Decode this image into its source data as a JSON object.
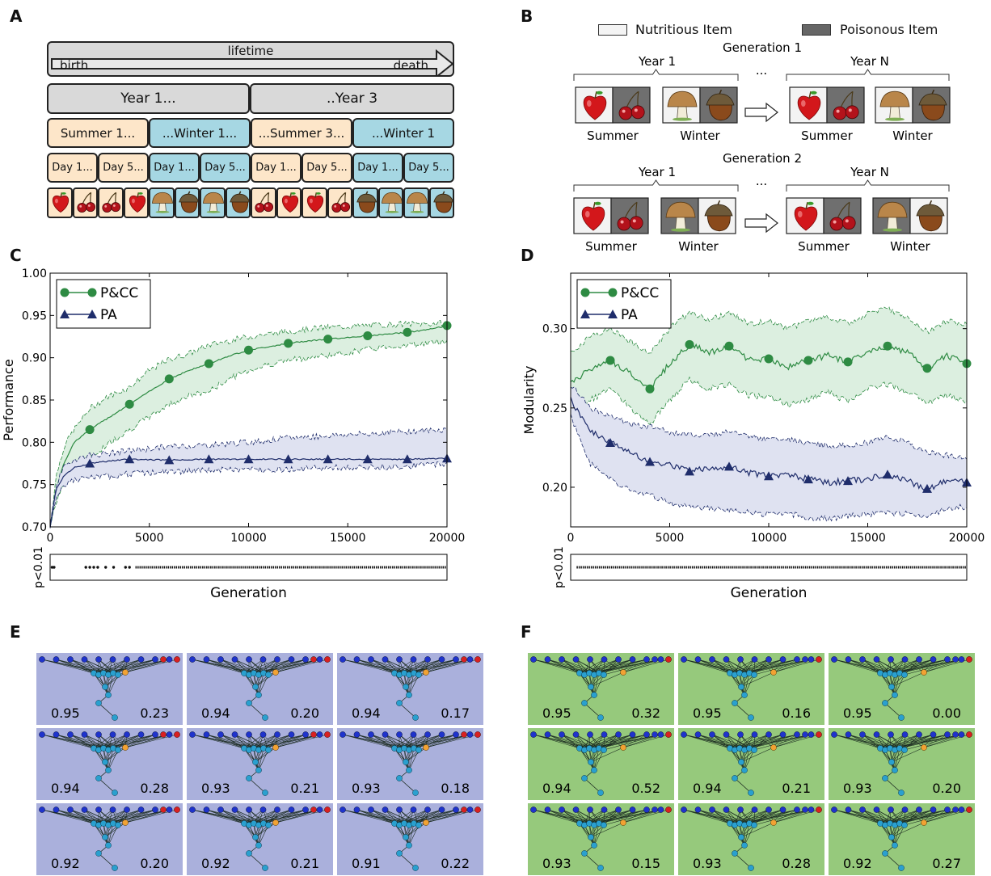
{
  "panels": {
    "A": "A",
    "B": "B",
    "C": "C",
    "D": "D",
    "E": "E",
    "F": "F"
  },
  "panelA": {
    "lifetime": "lifetime",
    "birth": "birth",
    "death": "death",
    "years": [
      "Year 1...",
      "..Year 3"
    ],
    "seasons": [
      "Summer 1...",
      "...Winter 1...",
      "...Summer 3...",
      "...Winter 1"
    ],
    "days": [
      "Day 1...",
      "Day 5...",
      "Day 1...",
      "Day 5...",
      "Day 1...",
      "Day 5...",
      "Day 1...",
      "Day 5..."
    ],
    "items": [
      "apple",
      "cherry",
      "cherry",
      "apple",
      "mushroom",
      "acorn",
      "mushroom",
      "acorn",
      "cherry",
      "apple",
      "apple",
      "cherry",
      "acorn",
      "mushroom",
      "mushroom",
      "acorn"
    ]
  },
  "panelB": {
    "legend": {
      "nutritious": "Nutritious Item",
      "poisonous": "Poisonous Item"
    },
    "generations": [
      {
        "title": "Generation 1",
        "year_start": "Year 1",
        "year_end": "Year N",
        "ellipsis": "...",
        "summer": "Summer",
        "winter": "Winter"
      },
      {
        "title": "Generation 2",
        "year_start": "Year 1",
        "year_end": "Year N",
        "ellipsis": "...",
        "summer": "Summer",
        "winter": "Winter"
      }
    ]
  },
  "chart_data": [
    {
      "type": "line",
      "panel": "C",
      "ylabel": "Performance",
      "xlabel": "Generation",
      "xlim": [
        0,
        20000
      ],
      "ylim": [
        0.7,
        1.0
      ],
      "xticks": [
        "0",
        "5000",
        "10000",
        "15000",
        "20000"
      ],
      "yticks": [
        "0.70",
        "0.75",
        "0.80",
        "0.85",
        "0.90",
        "0.95",
        "1.00"
      ],
      "legend_position": "top-left",
      "series": [
        {
          "name": "P&CC",
          "color": "#2e8b43",
          "marker": "circle",
          "x": [
            0,
            300,
            700,
            1200,
            2000,
            3000,
            4000,
            5000,
            6000,
            7000,
            8000,
            9000,
            10000,
            11000,
            12000,
            13000,
            14000,
            15000,
            16000,
            17000,
            18000,
            19000,
            20000
          ],
          "y": [
            0.7,
            0.745,
            0.775,
            0.8,
            0.815,
            0.83,
            0.845,
            0.86,
            0.875,
            0.885,
            0.893,
            0.902,
            0.909,
            0.913,
            0.917,
            0.92,
            0.922,
            0.924,
            0.926,
            0.928,
            0.93,
            0.933,
            0.938
          ],
          "lower": [
            0.7,
            0.73,
            0.75,
            0.77,
            0.78,
            0.8,
            0.815,
            0.83,
            0.845,
            0.855,
            0.86,
            0.875,
            0.885,
            0.892,
            0.897,
            0.9,
            0.903,
            0.906,
            0.91,
            0.913,
            0.915,
            0.917,
            0.92
          ],
          "upper": [
            0.7,
            0.76,
            0.795,
            0.815,
            0.84,
            0.855,
            0.865,
            0.885,
            0.898,
            0.905,
            0.915,
            0.92,
            0.925,
            0.928,
            0.931,
            0.934,
            0.936,
            0.937,
            0.938,
            0.939,
            0.94,
            0.94,
            0.941
          ]
        },
        {
          "name": "PA",
          "color": "#1f2d6b",
          "marker": "triangle",
          "x": [
            0,
            300,
            700,
            1200,
            2000,
            3000,
            4000,
            6000,
            8000,
            10000,
            12000,
            14000,
            16000,
            18000,
            20000
          ],
          "y": [
            0.7,
            0.745,
            0.76,
            0.77,
            0.775,
            0.778,
            0.78,
            0.779,
            0.78,
            0.78,
            0.78,
            0.78,
            0.78,
            0.78,
            0.781
          ],
          "lower": [
            0.7,
            0.735,
            0.75,
            0.755,
            0.758,
            0.76,
            0.763,
            0.765,
            0.767,
            0.768,
            0.768,
            0.77,
            0.77,
            0.772,
            0.775
          ],
          "upper": [
            0.7,
            0.75,
            0.77,
            0.78,
            0.785,
            0.787,
            0.79,
            0.795,
            0.797,
            0.8,
            0.805,
            0.808,
            0.81,
            0.813,
            0.815
          ]
        }
      ],
      "significance": {
        "ylabel": "p<0.01",
        "dense_from": 4300,
        "sparse_points": [
          100,
          200,
          1800,
          2000,
          2200,
          2400,
          2800,
          3200,
          3800,
          4000
        ]
      }
    },
    {
      "type": "line",
      "panel": "D",
      "ylabel": "Modularity",
      "xlabel": "Generation",
      "xlim": [
        0,
        20000
      ],
      "ylim": [
        0.175,
        0.335
      ],
      "xticks": [
        "0",
        "5000",
        "10000",
        "15000",
        "20000"
      ],
      "yticks": [
        "0.20",
        "0.25",
        "0.30"
      ],
      "ytick_values": [
        0.2,
        0.25,
        0.3
      ],
      "legend_position": "top-left",
      "series": [
        {
          "name": "P&CC",
          "color": "#2e8b43",
          "marker": "circle",
          "x": [
            0,
            1000,
            2000,
            3000,
            4000,
            5000,
            6000,
            7000,
            8000,
            9000,
            10000,
            11000,
            12000,
            13000,
            14000,
            15000,
            16000,
            17000,
            18000,
            19000,
            20000
          ],
          "y": [
            0.265,
            0.275,
            0.28,
            0.272,
            0.262,
            0.278,
            0.29,
            0.285,
            0.289,
            0.28,
            0.281,
            0.276,
            0.28,
            0.283,
            0.279,
            0.285,
            0.289,
            0.285,
            0.275,
            0.283,
            0.278
          ],
          "lower": [
            0.245,
            0.255,
            0.262,
            0.25,
            0.24,
            0.255,
            0.268,
            0.262,
            0.265,
            0.258,
            0.257,
            0.252,
            0.255,
            0.26,
            0.254,
            0.262,
            0.265,
            0.26,
            0.253,
            0.258,
            0.254
          ],
          "upper": [
            0.285,
            0.295,
            0.3,
            0.292,
            0.285,
            0.3,
            0.31,
            0.305,
            0.31,
            0.303,
            0.305,
            0.3,
            0.305,
            0.307,
            0.303,
            0.31,
            0.313,
            0.307,
            0.298,
            0.305,
            0.302
          ]
        },
        {
          "name": "PA",
          "color": "#1f2d6b",
          "marker": "triangle",
          "x": [
            0,
            1000,
            2000,
            3000,
            4000,
            5000,
            6000,
            7000,
            8000,
            9000,
            10000,
            11000,
            12000,
            13000,
            14000,
            15000,
            16000,
            17000,
            18000,
            19000,
            20000
          ],
          "y": [
            0.255,
            0.235,
            0.228,
            0.222,
            0.216,
            0.214,
            0.21,
            0.212,
            0.213,
            0.209,
            0.207,
            0.208,
            0.205,
            0.203,
            0.204,
            0.205,
            0.208,
            0.204,
            0.199,
            0.204,
            0.203
          ],
          "lower": [
            0.245,
            0.215,
            0.205,
            0.198,
            0.195,
            0.19,
            0.187,
            0.187,
            0.186,
            0.184,
            0.183,
            0.183,
            0.181,
            0.18,
            0.182,
            0.183,
            0.184,
            0.183,
            0.182,
            0.186,
            0.188
          ],
          "upper": [
            0.265,
            0.25,
            0.245,
            0.24,
            0.238,
            0.235,
            0.233,
            0.233,
            0.235,
            0.232,
            0.23,
            0.23,
            0.228,
            0.226,
            0.227,
            0.228,
            0.232,
            0.228,
            0.222,
            0.22,
            0.219
          ]
        }
      ],
      "significance": {
        "ylabel": "p<0.01",
        "dense_from": 300,
        "sparse_points": []
      }
    }
  ],
  "panelE": {
    "background": "#aab0dc",
    "cells": [
      {
        "performance": "0.95",
        "modularity": "0.23"
      },
      {
        "performance": "0.94",
        "modularity": "0.20"
      },
      {
        "performance": "0.94",
        "modularity": "0.17"
      },
      {
        "performance": "0.94",
        "modularity": "0.28"
      },
      {
        "performance": "0.93",
        "modularity": "0.21"
      },
      {
        "performance": "0.93",
        "modularity": "0.18"
      },
      {
        "performance": "0.92",
        "modularity": "0.20"
      },
      {
        "performance": "0.92",
        "modularity": "0.21"
      },
      {
        "performance": "0.91",
        "modularity": "0.22"
      }
    ]
  },
  "panelF": {
    "background": "#96c97c",
    "cells": [
      {
        "performance": "0.95",
        "modularity": "0.32"
      },
      {
        "performance": "0.95",
        "modularity": "0.16"
      },
      {
        "performance": "0.95",
        "modularity": "0.00"
      },
      {
        "performance": "0.94",
        "modularity": "0.52"
      },
      {
        "performance": "0.94",
        "modularity": "0.21"
      },
      {
        "performance": "0.93",
        "modularity": "0.20"
      },
      {
        "performance": "0.93",
        "modularity": "0.15"
      },
      {
        "performance": "0.93",
        "modularity": "0.28"
      },
      {
        "performance": "0.92",
        "modularity": "0.27"
      }
    ]
  },
  "colors": {
    "input_node": "#1f33cc",
    "bias_node": "#d92020",
    "hidden_node": "#2aa0cf",
    "orange_node": "#f2a233"
  },
  "icons": {
    "apple": "apple-icon",
    "cherry": "cherry-icon",
    "mushroom": "mushroom-icon",
    "acorn": "acorn-icon"
  }
}
